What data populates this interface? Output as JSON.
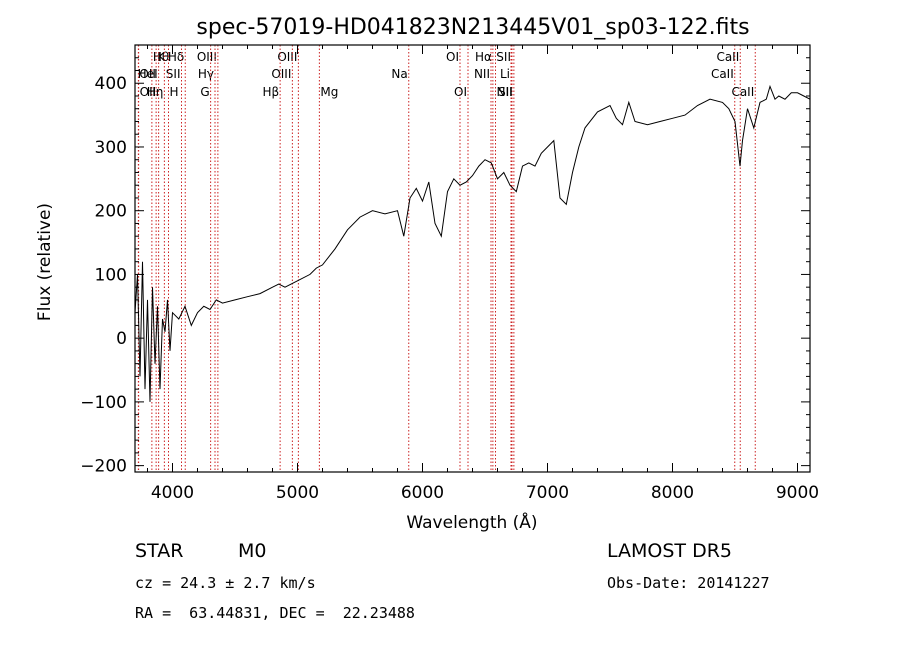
{
  "chart_data": {
    "type": "line",
    "title": "spec-57019-HD041823N213445V01_sp03-122.fits",
    "xlabel": "Wavelength (Å)",
    "ylabel": "Flux (relative)",
    "xlim": [
      3700,
      9100
    ],
    "ylim": [
      -210,
      460
    ],
    "xticks": [
      4000,
      5000,
      6000,
      7000,
      8000,
      9000
    ],
    "yticks": [
      -200,
      -100,
      0,
      100,
      200,
      300,
      400
    ],
    "grid": false,
    "line_color": "#000000",
    "marker_color": "#cc2222",
    "series": [
      {
        "x": [
          3700,
          3720,
          3740,
          3760,
          3780,
          3800,
          3820,
          3840,
          3860,
          3880,
          3900,
          3920,
          3940,
          3960,
          3980,
          4000,
          4050,
          4100,
          4150,
          4200,
          4250,
          4300,
          4350,
          4400,
          4500,
          4600,
          4700,
          4800,
          4850,
          4900,
          5000,
          5100,
          5150,
          5200,
          5300,
          5400,
          5500,
          5600,
          5700,
          5800,
          5850,
          5900,
          5950,
          6000,
          6050,
          6100,
          6150,
          6200,
          6250,
          6300,
          6350,
          6400,
          6450,
          6500,
          6550,
          6600,
          6650,
          6700,
          6750,
          6800,
          6850,
          6900,
          6950,
          7000,
          7050,
          7100,
          7150,
          7200,
          7250,
          7300,
          7400,
          7500,
          7550,
          7600,
          7650,
          7700,
          7800,
          7900,
          8000,
          8100,
          8200,
          8300,
          8400,
          8450,
          8500,
          8540,
          8560,
          8600,
          8650,
          8700,
          8750,
          8780,
          8800,
          8820,
          8850,
          8900,
          8950,
          9000,
          9050,
          9100
        ],
        "y": [
          40,
          100,
          -60,
          120,
          -80,
          60,
          -100,
          80,
          -40,
          50,
          -80,
          30,
          10,
          60,
          -20,
          40,
          30,
          50,
          20,
          40,
          50,
          45,
          60,
          55,
          60,
          65,
          70,
          80,
          85,
          80,
          90,
          100,
          110,
          115,
          140,
          170,
          190,
          200,
          195,
          200,
          160,
          220,
          235,
          215,
          245,
          180,
          160,
          230,
          250,
          240,
          245,
          255,
          270,
          280,
          275,
          250,
          260,
          240,
          230,
          270,
          275,
          270,
          290,
          300,
          310,
          220,
          210,
          260,
          300,
          330,
          355,
          365,
          345,
          335,
          370,
          340,
          335,
          340,
          345,
          350,
          365,
          375,
          370,
          360,
          340,
          270,
          310,
          360,
          330,
          370,
          375,
          395,
          385,
          375,
          380,
          375,
          385,
          385,
          380,
          375
        ]
      }
    ],
    "line_markers": [
      {
        "w": 3835,
        "label": "Hθ",
        "row": 0,
        "side": "r"
      },
      {
        "w": 3869,
        "label": "K",
        "row": 0,
        "side": "r"
      },
      {
        "w": 4102,
        "label": "Hδ",
        "row": 0,
        "side": "l"
      },
      {
        "w": 4363,
        "label": "OIII",
        "row": 0,
        "side": "l"
      },
      {
        "w": 5007,
        "label": "OIII",
        "row": 0,
        "side": "l"
      },
      {
        "w": 6300,
        "label": "OI",
        "row": 0,
        "side": "l"
      },
      {
        "w": 6563,
        "label": "Hα",
        "row": 0,
        "side": "l"
      },
      {
        "w": 6716,
        "label": "SII",
        "row": 0,
        "side": "l"
      },
      {
        "w": 8542,
        "label": "CaII",
        "row": 0,
        "side": "l"
      },
      {
        "w": 3727,
        "label": "OII",
        "row": 1,
        "side": "r"
      },
      {
        "w": 3889,
        "label": "HeI",
        "row": 1,
        "side": "l"
      },
      {
        "w": 4072,
        "label": "SII",
        "row": 1,
        "side": "l"
      },
      {
        "w": 4340,
        "label": "Hγ",
        "row": 1,
        "side": "l"
      },
      {
        "w": 4959,
        "label": "OIII",
        "row": 1,
        "side": "l"
      },
      {
        "w": 5890,
        "label": "Na",
        "row": 1,
        "side": "l"
      },
      {
        "w": 6548,
        "label": "NII",
        "row": 1,
        "side": "l"
      },
      {
        "w": 6708,
        "label": "Li",
        "row": 1,
        "side": "l"
      },
      {
        "w": 8498,
        "label": "CaII",
        "row": 1,
        "side": "l"
      },
      {
        "w": 3729,
        "label": "OII",
        "row": 2,
        "side": "r"
      },
      {
        "w": 3935,
        "label": "Hη",
        "row": 2,
        "side": "l"
      },
      {
        "w": 3968,
        "label": "H",
        "row": 2,
        "side": "r"
      },
      {
        "w": 4305,
        "label": "G",
        "row": 2,
        "side": "l"
      },
      {
        "w": 4861,
        "label": "Hβ",
        "row": 2,
        "side": "l"
      },
      {
        "w": 5175,
        "label": "Mg",
        "row": 2,
        "side": "r"
      },
      {
        "w": 6364,
        "label": "OI",
        "row": 2,
        "side": "l"
      },
      {
        "w": 6584,
        "label": "NII",
        "row": 2,
        "side": "r"
      },
      {
        "w": 6731,
        "label": "SII",
        "row": 2,
        "side": "l"
      },
      {
        "w": 8662,
        "label": "CaII",
        "row": 2,
        "side": "l"
      }
    ]
  },
  "info": {
    "object_class": "STAR",
    "subclass": "M0",
    "survey": "LAMOST DR5",
    "redshift": "cz = 24.3 ± 2.7 km/s",
    "obs_date": "Obs-Date: 20141227",
    "coords": "RA =  63.44831, DEC =  22.23488"
  }
}
